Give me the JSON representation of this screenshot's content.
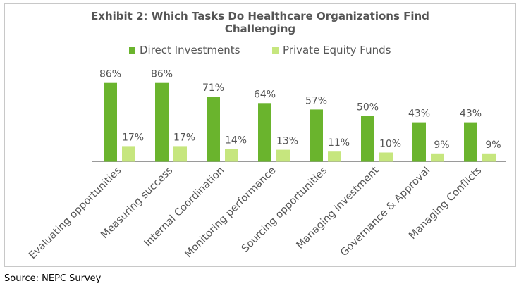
{
  "page": {
    "title_line1": "Exhibit 2: Which Tasks Do Healthcare Organizations Find",
    "title_line2": "Challenging",
    "source": "Source: NEPC Survey"
  },
  "chart_data": {
    "type": "bar",
    "title": "Exhibit 2: Which Tasks Do Healthcare Organizations Find Challenging",
    "categories": [
      "Evaluating opportunities",
      "Measuring success",
      "Internal Coordination",
      "Monitoring performance",
      "Sourcing opportunities",
      "Managing investment",
      "Governance & Approval",
      "Managing Conflicts"
    ],
    "series": [
      {
        "name": "Direct Investments",
        "values": [
          86,
          86,
          71,
          64,
          57,
          50,
          43,
          43
        ],
        "labels": [
          "86%",
          "86%",
          "71%",
          "64%",
          "57%",
          "50%",
          "43%",
          "43%"
        ],
        "color": "#6ab42d"
      },
      {
        "name": "Private Equity Funds",
        "values": [
          17,
          17,
          14,
          13,
          11,
          10,
          9,
          9
        ],
        "labels": [
          "17%",
          "17%",
          "14%",
          "13%",
          "11%",
          "10%",
          "9%",
          "9%"
        ],
        "color": "#c6e67e"
      }
    ],
    "ylim": [
      0,
      100
    ],
    "grid": false,
    "legend_position": "top",
    "label_color": "#555555"
  }
}
